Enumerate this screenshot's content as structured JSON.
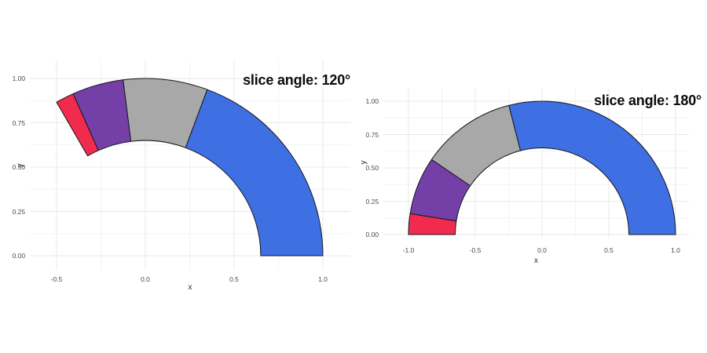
{
  "style": {
    "background": "#ffffff",
    "grid_major_color": "#e8e8e8",
    "grid_minor_color": "#f3f3f3",
    "slice_outline_color": "#17171e",
    "tick_label_color": "#4a4a4a",
    "axis_title_color": "#2f2f2f",
    "annotation_color": "#0b0b0b"
  },
  "chart_data": [
    {
      "type": "donut-arc",
      "title": "slice angle: 120°",
      "xlabel": "x",
      "ylabel": "y",
      "slice_angle_deg": 120,
      "start_angle_deg": 0,
      "direction": "counterclockwise",
      "inner_radius": 0.65,
      "outer_radius": 1.0,
      "series": [
        {
          "name": "blue",
          "fraction": 0.58,
          "start_deg": 0,
          "end_deg": 69.6,
          "color": "#3E70E3"
        },
        {
          "name": "gray",
          "fraction": 0.23,
          "start_deg": 69.6,
          "end_deg": 97.2,
          "color": "#A8A8A8"
        },
        {
          "name": "purple",
          "fraction": 0.14,
          "start_deg": 97.2,
          "end_deg": 114.0,
          "color": "#7440A8"
        },
        {
          "name": "red",
          "fraction": 0.05,
          "start_deg": 114.0,
          "end_deg": 120.0,
          "color": "#F02B4D"
        }
      ],
      "x_ticks": [
        {
          "v": -0.5,
          "label": "-0.5"
        },
        {
          "v": 0.0,
          "label": "0.0"
        },
        {
          "v": 0.5,
          "label": "0.5"
        },
        {
          "v": 1.0,
          "label": "1.0"
        }
      ],
      "y_ticks": [
        {
          "v": 0.0,
          "label": "0.00"
        },
        {
          "v": 0.25,
          "label": "0.25"
        },
        {
          "v": 0.5,
          "label": "0.50"
        },
        {
          "v": 0.75,
          "label": "0.75"
        },
        {
          "v": 1.0,
          "label": "1.00"
        }
      ],
      "x_minor": [
        -0.25,
        0.25,
        0.75
      ],
      "y_minor": [
        0.125,
        0.375,
        0.625,
        0.875
      ],
      "xlim": [
        -0.65,
        1.155
      ],
      "ylim": [
        -0.08,
        1.102
      ],
      "grid": true,
      "legend": "none"
    },
    {
      "type": "donut-arc",
      "title": "slice angle: 180°",
      "xlabel": "x",
      "ylabel": "y",
      "slice_angle_deg": 180,
      "start_angle_deg": 0,
      "direction": "counterclockwise",
      "inner_radius": 0.65,
      "outer_radius": 1.0,
      "series": [
        {
          "name": "blue",
          "fraction": 0.58,
          "start_deg": 0,
          "end_deg": 104.4,
          "color": "#3E70E3"
        },
        {
          "name": "gray",
          "fraction": 0.23,
          "start_deg": 104.4,
          "end_deg": 145.8,
          "color": "#A8A8A8"
        },
        {
          "name": "purple",
          "fraction": 0.14,
          "start_deg": 145.8,
          "end_deg": 171.0,
          "color": "#7440A8"
        },
        {
          "name": "red",
          "fraction": 0.05,
          "start_deg": 171.0,
          "end_deg": 180.0,
          "color": "#F02B4D"
        }
      ],
      "x_ticks": [
        {
          "v": -1.0,
          "label": "-1.0"
        },
        {
          "v": -0.5,
          "label": "-0.5"
        },
        {
          "v": 0.0,
          "label": "0.0"
        },
        {
          "v": 0.5,
          "label": "0.5"
        },
        {
          "v": 1.0,
          "label": "1.0"
        }
      ],
      "y_ticks": [
        {
          "v": 0.0,
          "label": "0.00"
        },
        {
          "v": 0.25,
          "label": "0.25"
        },
        {
          "v": 0.5,
          "label": "0.50"
        },
        {
          "v": 0.75,
          "label": "0.75"
        },
        {
          "v": 1.0,
          "label": "1.00"
        }
      ],
      "x_minor": [
        -0.75,
        -0.25,
        0.25,
        0.75
      ],
      "y_minor": [
        0.125,
        0.375,
        0.625,
        0.875
      ],
      "xlim": [
        -1.188,
        1.1
      ],
      "ylim": [
        -0.0235,
        1.1
      ],
      "grid": true,
      "legend": "none"
    }
  ]
}
